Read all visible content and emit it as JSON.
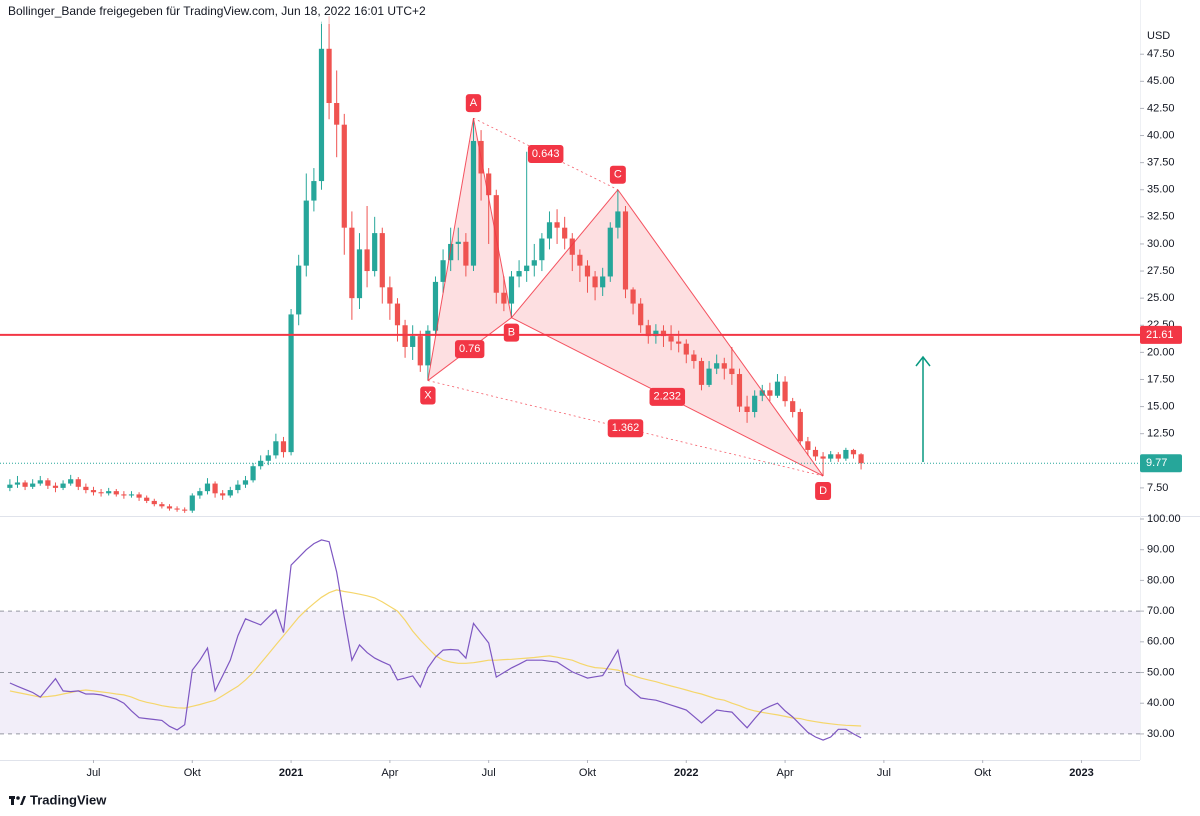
{
  "chart_data": [
    {
      "type": "candlestick",
      "title": "Bollinger_Bande freigegeben für TradingView.com, Jun 18, 2022 16:01 UTC+2",
      "currency": "USD",
      "up_color": "#26a69a",
      "down_color": "#ef5350",
      "candles": {
        "open": [
          7.5,
          7.8,
          8.0,
          7.6,
          7.9,
          8.2,
          7.7,
          7.5,
          7.9,
          8.3,
          7.6,
          7.3,
          7.1,
          7.0,
          7.2,
          6.9,
          6.8,
          6.9,
          6.6,
          6.3,
          6.0,
          5.8,
          5.6,
          5.5,
          5.4,
          6.8,
          7.2,
          7.9,
          7.0,
          6.8,
          7.3,
          7.8,
          8.2,
          9.5,
          10.0,
          10.5,
          11.8,
          10.8,
          23.5,
          28,
          34,
          35.8,
          48,
          43,
          41,
          31.5,
          25,
          29.5,
          27.5,
          31,
          26,
          24.5,
          22.5,
          20.5,
          21.5,
          18.8,
          22,
          26.5,
          28.5,
          30,
          30.2,
          28,
          39.5,
          36.5,
          34.5,
          25.5,
          24.5,
          27,
          27.5,
          28,
          28.5,
          30.5,
          32,
          31.5,
          30.5,
          29,
          28,
          27,
          26,
          27,
          31.5,
          33,
          25.8,
          24.5,
          22.5,
          21.5,
          22,
          21.5,
          21,
          20.8,
          19.8,
          19.2,
          17,
          18.5,
          19,
          18.5,
          18,
          15,
          14.5,
          16,
          16.5,
          16,
          17.3,
          15.5,
          14.5,
          11.8,
          11,
          10.4,
          10.2,
          10.6,
          10.2,
          11.0,
          10.6
        ],
        "high": [
          8.3,
          8.6,
          8.2,
          8.3,
          8.6,
          8.4,
          8.0,
          8.2,
          8.7,
          8.5,
          7.9,
          7.6,
          7.4,
          7.5,
          7.4,
          7.2,
          7.2,
          7.1,
          6.8,
          6.5,
          6.2,
          6.0,
          5.8,
          5.7,
          7.0,
          7.5,
          8.4,
          8.1,
          7.3,
          7.6,
          8.2,
          8.6,
          9.8,
          10.5,
          11.0,
          12.5,
          12.2,
          24,
          29,
          36.5,
          37,
          50.5,
          51,
          46,
          42,
          33,
          31,
          33.5,
          32.5,
          31.5,
          27,
          25,
          23,
          22.5,
          22,
          22.5,
          27,
          29.5,
          31.5,
          31.5,
          31,
          41.6,
          40.5,
          37,
          35,
          27,
          27.5,
          28.5,
          38.5,
          30,
          31,
          33,
          33.2,
          32.5,
          31,
          29.5,
          28.5,
          27.5,
          27.8,
          32,
          35,
          33.5,
          26,
          25,
          23,
          22.6,
          22.5,
          22.5,
          22,
          21.2,
          20.2,
          19.5,
          19.2,
          19.8,
          19.5,
          20.5,
          18.5,
          16,
          16.5,
          17,
          17.2,
          18,
          17.8,
          15.8,
          14.8,
          12.2,
          11.3,
          10.8,
          10.9,
          10.8,
          11.2,
          11.1,
          10.7
        ],
        "low": [
          7.2,
          7.5,
          7.3,
          7.4,
          7.7,
          7.4,
          7.1,
          7.3,
          7.7,
          7.3,
          7.0,
          6.8,
          6.7,
          6.8,
          6.7,
          6.5,
          6.6,
          6.3,
          6.1,
          5.8,
          5.6,
          5.4,
          5.3,
          5.2,
          5.2,
          6.5,
          6.9,
          6.6,
          6.4,
          6.6,
          7.0,
          7.5,
          8.0,
          9.2,
          9.6,
          10.2,
          10.3,
          10.5,
          22.5,
          27,
          33,
          35,
          41.5,
          38,
          29,
          23,
          24,
          26,
          27,
          24.5,
          23,
          21,
          19.5,
          19.3,
          18.2,
          17.4,
          21.5,
          25.5,
          27.5,
          28.5,
          27,
          27.5,
          34,
          30,
          24.5,
          23.8,
          23.2,
          26,
          26.5,
          27,
          27.5,
          29.5,
          30,
          29.5,
          27.5,
          26.5,
          25.5,
          24.8,
          25.2,
          26.5,
          30.5,
          25,
          23.5,
          21.8,
          20.8,
          20.8,
          20.5,
          20.2,
          20,
          19,
          18.5,
          16.5,
          16.8,
          18,
          17.5,
          17,
          14.5,
          13.5,
          14,
          15.5,
          15.5,
          15.8,
          15,
          14,
          11.5,
          10.5,
          10,
          8.6,
          9.9,
          9.9,
          10,
          10.2,
          9.2
        ],
        "close": [
          7.8,
          8.0,
          7.6,
          7.9,
          8.2,
          7.7,
          7.5,
          7.9,
          8.3,
          7.6,
          7.3,
          7.1,
          7.0,
          7.2,
          6.9,
          6.8,
          6.9,
          6.6,
          6.3,
          6.0,
          5.8,
          5.6,
          5.5,
          5.4,
          6.8,
          7.2,
          7.9,
          7.0,
          6.8,
          7.3,
          7.8,
          8.2,
          9.5,
          10.0,
          10.5,
          11.8,
          10.8,
          23.5,
          28,
          34,
          35.8,
          48,
          43,
          41,
          31.5,
          25,
          29.5,
          27.5,
          31,
          26,
          24.5,
          22.5,
          20.5,
          21.5,
          18.8,
          22,
          26.5,
          28.5,
          30,
          30.2,
          28,
          39.5,
          36.5,
          34.5,
          25.5,
          24.5,
          27,
          27.5,
          28,
          28.5,
          30.5,
          32,
          31.5,
          30.5,
          29,
          28,
          27,
          26,
          27,
          31.5,
          33,
          25.8,
          24.5,
          22.5,
          21.5,
          22,
          21.5,
          21,
          20.8,
          19.8,
          19.2,
          17,
          18.5,
          19,
          18.5,
          18,
          15,
          14.5,
          16,
          16.5,
          16,
          17.3,
          15.5,
          14.5,
          11.8,
          11,
          10.4,
          10.2,
          10.6,
          10.2,
          11.0,
          10.6,
          9.77
        ]
      },
      "xlim": [
        -1.3,
        148.7
      ],
      "xticks": [
        {
          "value": 11,
          "label": "Jul"
        },
        {
          "value": 24,
          "label": "Okt"
        },
        {
          "value": 37,
          "label": "2021"
        },
        {
          "value": 50,
          "label": "Apr"
        },
        {
          "value": 63,
          "label": "Jul"
        },
        {
          "value": 76,
          "label": "Okt"
        },
        {
          "value": 89,
          "label": "2022"
        },
        {
          "value": 102,
          "label": "Apr"
        },
        {
          "value": 115,
          "label": "Jul"
        },
        {
          "value": 128,
          "label": "Okt"
        },
        {
          "value": 141,
          "label": "2023"
        }
      ],
      "ylim": [
        5,
        52.5
      ],
      "yticks": [
        {
          "value": 7.5,
          "label": "7.50"
        },
        {
          "value": 12.5,
          "label": "12.50"
        },
        {
          "value": 15,
          "label": "15.00"
        },
        {
          "value": 17.5,
          "label": "17.50"
        },
        {
          "value": 20,
          "label": "20.00"
        },
        {
          "value": 22.5,
          "label": "22.50"
        },
        {
          "value": 25,
          "label": "25.00"
        },
        {
          "value": 27.5,
          "label": "27.50"
        },
        {
          "value": 30,
          "label": "30.00"
        },
        {
          "value": 32.5,
          "label": "32.50"
        },
        {
          "value": 35,
          "label": "35.00"
        },
        {
          "value": 37.5,
          "label": "37.50"
        },
        {
          "value": 40,
          "label": "40.00"
        },
        {
          "value": 42.5,
          "label": "42.50"
        },
        {
          "value": 45,
          "label": "45.00"
        },
        {
          "value": 47.5,
          "label": "47.50"
        }
      ],
      "hline": 21.61,
      "hline_color": "#f23645",
      "last": 9.77,
      "last_color": "#26a69a",
      "pattern": {
        "color": "#f23645",
        "points": [
          {
            "label": "X",
            "x": 55,
            "y": 17.4
          },
          {
            "label": "A",
            "x": 61,
            "y": 41.6
          },
          {
            "label": "B",
            "x": 66,
            "y": 23.2
          },
          {
            "label": "C",
            "x": 80,
            "y": 35
          },
          {
            "label": "D",
            "x": 107,
            "y": 8.6
          }
        ],
        "ratios": [
          0.76,
          0.643,
          2.232,
          1.362
        ]
      }
    },
    {
      "type": "line",
      "ylim": [
        22,
        100
      ],
      "yticks": [
        {
          "value": 30,
          "label": "30.00"
        },
        {
          "value": 40,
          "label": "40.00"
        },
        {
          "value": 50,
          "label": "50.00"
        },
        {
          "value": 60,
          "label": "60.00"
        },
        {
          "value": 70,
          "label": "70.00"
        },
        {
          "value": 80,
          "label": "80.00"
        },
        {
          "value": 90,
          "label": "90.00"
        },
        {
          "value": 100,
          "label": "100.00"
        }
      ],
      "band": [
        30,
        70
      ],
      "levels": [
        70,
        50,
        30
      ],
      "series": [
        {
          "color": "#7e57c2",
          "values": [
            46.6,
            45.5,
            44.5,
            43.5,
            42,
            45,
            48,
            44,
            43.8,
            44,
            43,
            43,
            42.7,
            42,
            41.3,
            40,
            37.5,
            35.3,
            35,
            34.7,
            34.4,
            32.5,
            31.3,
            33,
            50.8,
            54,
            58,
            44,
            49,
            54,
            62,
            67.5,
            66.5,
            65.5,
            68,
            70.4,
            63,
            85,
            87.5,
            90,
            92,
            93.2,
            92.6,
            82.7,
            68,
            54,
            59,
            56.5,
            54.7,
            53.5,
            52.4,
            47.6,
            48.2,
            48.9,
            45.3,
            51.5,
            55,
            57.3,
            57.5,
            57.3,
            54.7,
            66,
            62.8,
            59.6,
            48.5,
            50,
            51.5,
            52.7,
            54,
            54,
            54,
            53.7,
            53.4,
            51.8,
            50.2,
            49.2,
            48.2,
            48.6,
            49,
            53,
            57.3,
            46,
            43.8,
            41.7,
            41.3,
            41,
            40.2,
            39.4,
            38.6,
            37.8,
            35.7,
            33.6,
            35.7,
            37.8,
            37.4,
            37.1,
            34.5,
            32,
            35,
            37.8,
            39,
            40,
            37.5,
            35.5,
            33,
            30.5,
            29,
            28,
            29,
            31.5,
            31.5,
            30,
            28.7
          ]
        },
        {
          "color": "#f5d66b",
          "values": [
            44,
            43.5,
            43,
            42.5,
            42,
            42.2,
            42.5,
            43,
            43.5,
            44,
            44.3,
            44,
            43.7,
            43.4,
            43,
            42.7,
            42,
            41,
            40.3,
            39.8,
            39.2,
            38.8,
            38.5,
            38.4,
            39,
            39.6,
            40.3,
            41,
            42.5,
            44,
            45.5,
            47.6,
            50,
            53,
            56,
            59,
            62,
            65,
            68,
            70.4,
            72.5,
            74.5,
            76,
            76.9,
            76.4,
            76,
            75.5,
            75,
            74.3,
            73,
            71.5,
            70,
            67,
            63.5,
            60.6,
            58,
            55.5,
            54,
            53.4,
            53,
            53,
            53.2,
            53.6,
            54,
            54,
            54.2,
            54.3,
            54.5,
            54.7,
            54.9,
            55.2,
            55.4,
            55,
            54.5,
            54,
            53,
            52.2,
            51.6,
            51.4,
            51.1,
            50.8,
            49.8,
            49,
            48.2,
            47.6,
            47,
            46.3,
            45.6,
            45,
            44.3,
            43.6,
            43,
            42.2,
            41.4,
            41,
            40,
            39.2,
            38.2,
            37.5,
            37,
            36.6,
            36.2,
            35.7,
            35.2,
            35,
            34.4,
            34,
            33.6,
            33.3,
            33,
            32.8,
            32.7,
            32.6
          ]
        }
      ]
    }
  ],
  "footer": {
    "brand": "TradingView"
  }
}
